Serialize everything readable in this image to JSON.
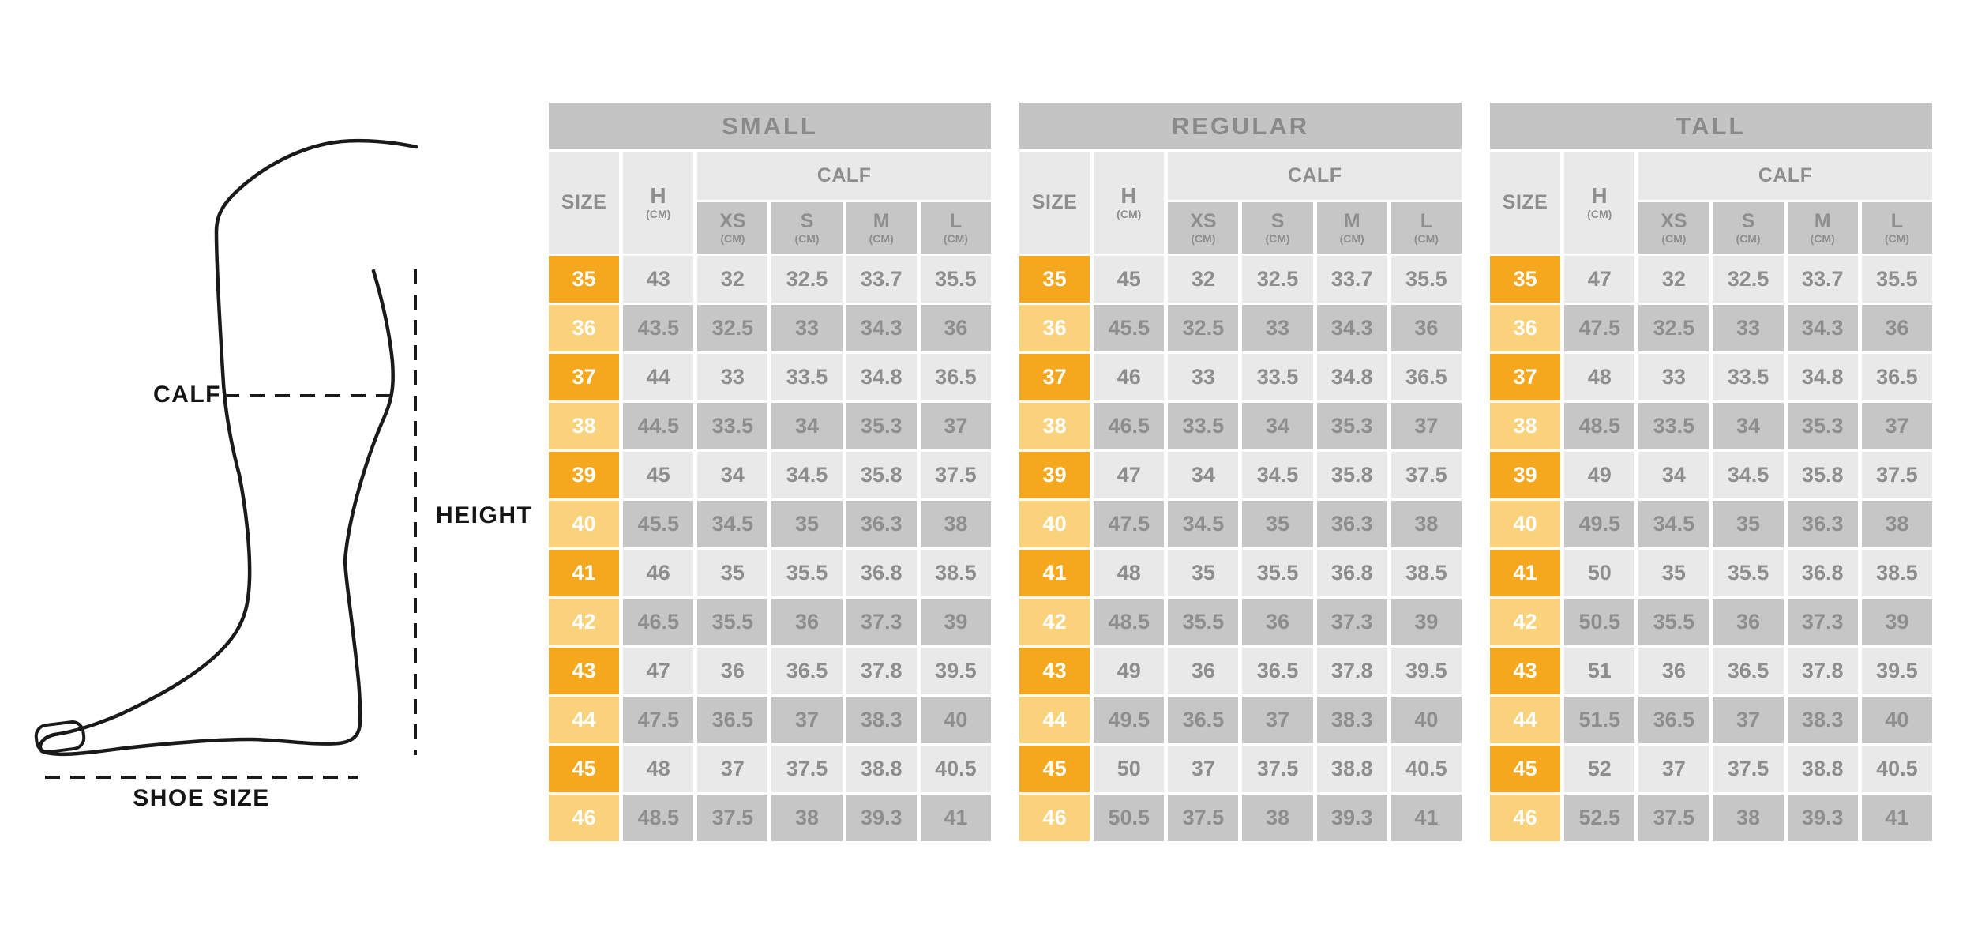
{
  "diagram": {
    "calf_label": "CALF",
    "height_label": "HEIGHT",
    "shoe_size_label": "SHOE SIZE"
  },
  "colors": {
    "accent_dark": "#F5A81E",
    "accent_light": "#FAD27B",
    "banner_gray": "#C4C4C4",
    "row_light": "#E9E9E9",
    "row_dark": "#C6C6C6",
    "text_gray": "#8E8E8E",
    "line_black": "#1A1A1A"
  },
  "tables": [
    {
      "title": "SMALL",
      "columns": {
        "size": "SIZE",
        "height": "H",
        "unit": "(CM)",
        "calf": "CALF",
        "calf_fits": [
          {
            "label": "XS",
            "unit": "(CM)"
          },
          {
            "label": "S",
            "unit": "(CM)"
          },
          {
            "label": "M",
            "unit": "(CM)"
          },
          {
            "label": "L",
            "unit": "(CM)"
          }
        ]
      },
      "rows": [
        {
          "size": "35",
          "values": [
            "43",
            "32",
            "32.5",
            "33.7",
            "35.5"
          ]
        },
        {
          "size": "36",
          "values": [
            "43.5",
            "32.5",
            "33",
            "34.3",
            "36"
          ]
        },
        {
          "size": "37",
          "values": [
            "44",
            "33",
            "33.5",
            "34.8",
            "36.5"
          ]
        },
        {
          "size": "38",
          "values": [
            "44.5",
            "33.5",
            "34",
            "35.3",
            "37"
          ]
        },
        {
          "size": "39",
          "values": [
            "45",
            "34",
            "34.5",
            "35.8",
            "37.5"
          ]
        },
        {
          "size": "40",
          "values": [
            "45.5",
            "34.5",
            "35",
            "36.3",
            "38"
          ]
        },
        {
          "size": "41",
          "values": [
            "46",
            "35",
            "35.5",
            "36.8",
            "38.5"
          ]
        },
        {
          "size": "42",
          "values": [
            "46.5",
            "35.5",
            "36",
            "37.3",
            "39"
          ]
        },
        {
          "size": "43",
          "values": [
            "47",
            "36",
            "36.5",
            "37.8",
            "39.5"
          ]
        },
        {
          "size": "44",
          "values": [
            "47.5",
            "36.5",
            "37",
            "38.3",
            "40"
          ]
        },
        {
          "size": "45",
          "values": [
            "48",
            "37",
            "37.5",
            "38.8",
            "40.5"
          ]
        },
        {
          "size": "46",
          "values": [
            "48.5",
            "37.5",
            "38",
            "39.3",
            "41"
          ]
        }
      ]
    },
    {
      "title": "REGULAR",
      "columns": {
        "size": "SIZE",
        "height": "H",
        "unit": "(CM)",
        "calf": "CALF",
        "calf_fits": [
          {
            "label": "XS",
            "unit": "(CM)"
          },
          {
            "label": "S",
            "unit": "(CM)"
          },
          {
            "label": "M",
            "unit": "(CM)"
          },
          {
            "label": "L",
            "unit": "(CM)"
          }
        ]
      },
      "rows": [
        {
          "size": "35",
          "values": [
            "45",
            "32",
            "32.5",
            "33.7",
            "35.5"
          ]
        },
        {
          "size": "36",
          "values": [
            "45.5",
            "32.5",
            "33",
            "34.3",
            "36"
          ]
        },
        {
          "size": "37",
          "values": [
            "46",
            "33",
            "33.5",
            "34.8",
            "36.5"
          ]
        },
        {
          "size": "38",
          "values": [
            "46.5",
            "33.5",
            "34",
            "35.3",
            "37"
          ]
        },
        {
          "size": "39",
          "values": [
            "47",
            "34",
            "34.5",
            "35.8",
            "37.5"
          ]
        },
        {
          "size": "40",
          "values": [
            "47.5",
            "34.5",
            "35",
            "36.3",
            "38"
          ]
        },
        {
          "size": "41",
          "values": [
            "48",
            "35",
            "35.5",
            "36.8",
            "38.5"
          ]
        },
        {
          "size": "42",
          "values": [
            "48.5",
            "35.5",
            "36",
            "37.3",
            "39"
          ]
        },
        {
          "size": "43",
          "values": [
            "49",
            "36",
            "36.5",
            "37.8",
            "39.5"
          ]
        },
        {
          "size": "44",
          "values": [
            "49.5",
            "36.5",
            "37",
            "38.3",
            "40"
          ]
        },
        {
          "size": "45",
          "values": [
            "50",
            "37",
            "37.5",
            "38.8",
            "40.5"
          ]
        },
        {
          "size": "46",
          "values": [
            "50.5",
            "37.5",
            "38",
            "39.3",
            "41"
          ]
        }
      ]
    },
    {
      "title": "TALL",
      "columns": {
        "size": "SIZE",
        "height": "H",
        "unit": "(CM)",
        "calf": "CALF",
        "calf_fits": [
          {
            "label": "XS",
            "unit": "(CM)"
          },
          {
            "label": "S",
            "unit": "(CM)"
          },
          {
            "label": "M",
            "unit": "(CM)"
          },
          {
            "label": "L",
            "unit": "(CM)"
          }
        ]
      },
      "rows": [
        {
          "size": "35",
          "values": [
            "47",
            "32",
            "32.5",
            "33.7",
            "35.5"
          ]
        },
        {
          "size": "36",
          "values": [
            "47.5",
            "32.5",
            "33",
            "34.3",
            "36"
          ]
        },
        {
          "size": "37",
          "values": [
            "48",
            "33",
            "33.5",
            "34.8",
            "36.5"
          ]
        },
        {
          "size": "38",
          "values": [
            "48.5",
            "33.5",
            "34",
            "35.3",
            "37"
          ]
        },
        {
          "size": "39",
          "values": [
            "49",
            "34",
            "34.5",
            "35.8",
            "37.5"
          ]
        },
        {
          "size": "40",
          "values": [
            "49.5",
            "34.5",
            "35",
            "36.3",
            "38"
          ]
        },
        {
          "size": "41",
          "values": [
            "50",
            "35",
            "35.5",
            "36.8",
            "38.5"
          ]
        },
        {
          "size": "42",
          "values": [
            "50.5",
            "35.5",
            "36",
            "37.3",
            "39"
          ]
        },
        {
          "size": "43",
          "values": [
            "51",
            "36",
            "36.5",
            "37.8",
            "39.5"
          ]
        },
        {
          "size": "44",
          "values": [
            "51.5",
            "36.5",
            "37",
            "38.3",
            "40"
          ]
        },
        {
          "size": "45",
          "values": [
            "52",
            "37",
            "37.5",
            "38.8",
            "40.5"
          ]
        },
        {
          "size": "46",
          "values": [
            "52.5",
            "37.5",
            "38",
            "39.3",
            "41"
          ]
        }
      ]
    }
  ]
}
